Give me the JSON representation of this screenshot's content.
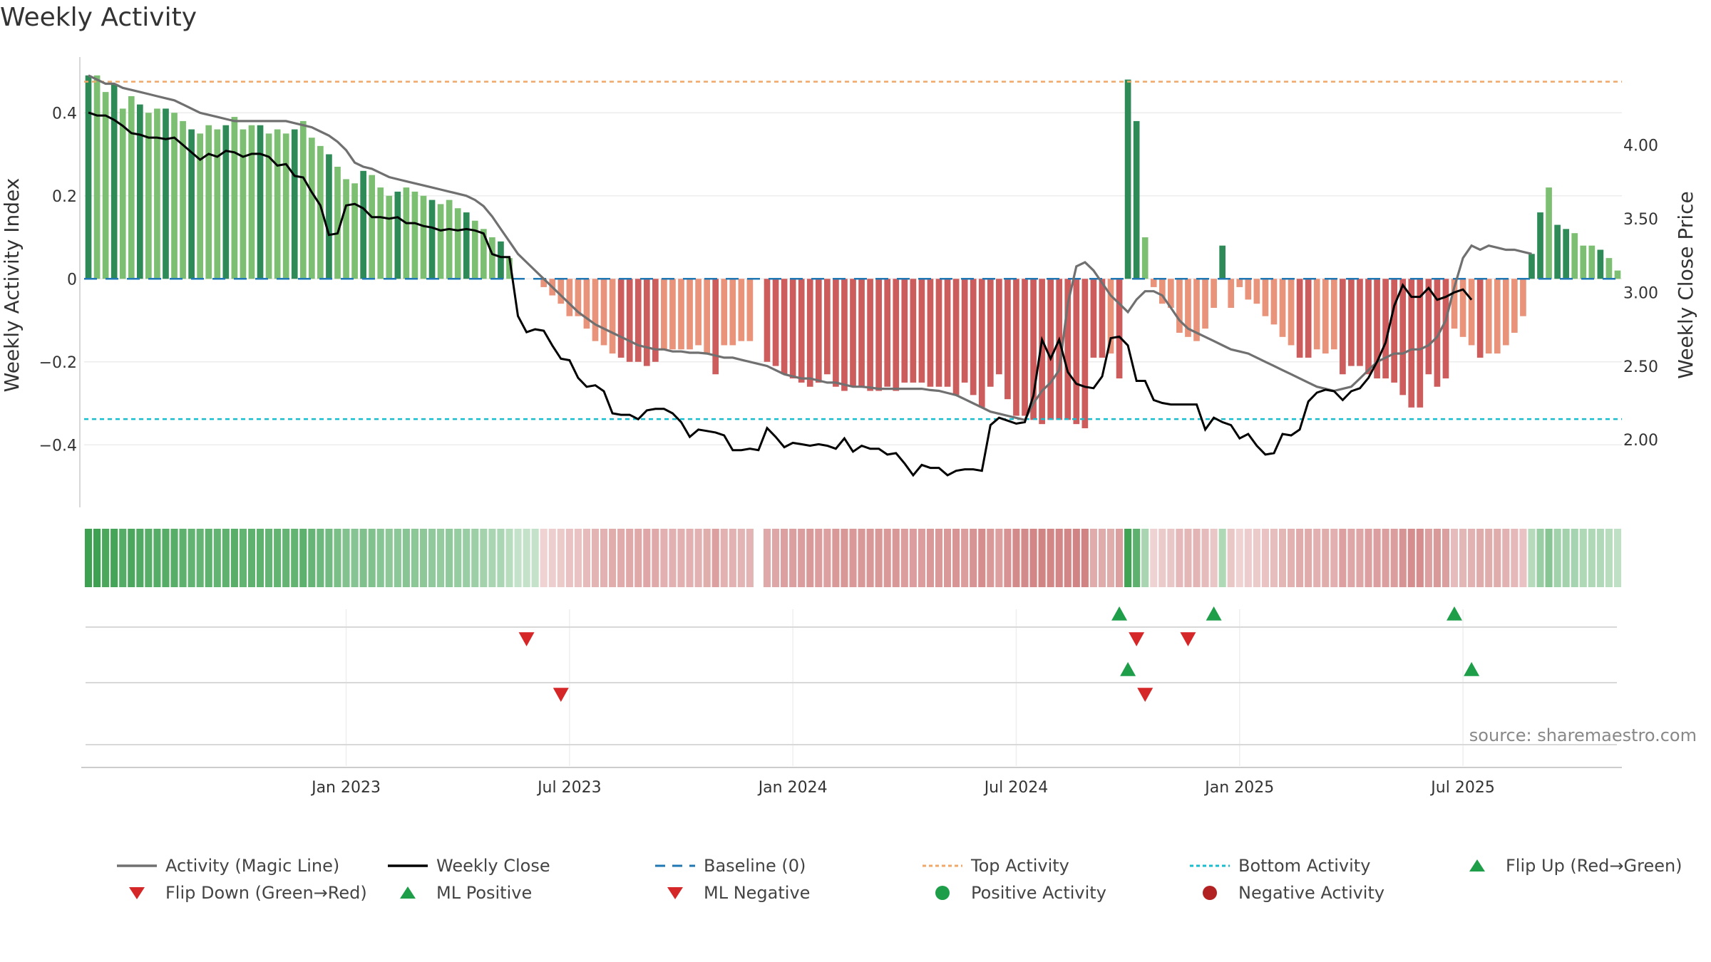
{
  "title": "Weekly Activity",
  "source": "source: sharemaestro.com",
  "colors": {
    "strong_green": "#2e8b57",
    "light_green": "#7cbf72",
    "strong_red": "#cd5c5c",
    "light_red": "#e8937a",
    "magic_line": "#707070",
    "close_line": "#000000",
    "baseline": "#1f77b4",
    "top": "#f0a868",
    "bottom": "#17becf",
    "flip_up": "#1f9e4a",
    "flip_down": "#d62728"
  },
  "chart_data": {
    "type": "bar",
    "title": "Weekly Activity",
    "ylabel_left": "Weekly Activity Index",
    "ylabel_right": "Weekly Close Price",
    "ylim_left": [
      -0.53,
      0.5
    ],
    "ylim_right": [
      1.6,
      4.5
    ],
    "yticks_left": [
      {
        "v": 0.4,
        "label": "0.4"
      },
      {
        "v": 0.2,
        "label": "0.2"
      },
      {
        "v": 0,
        "label": "0"
      },
      {
        "v": -0.2,
        "label": "−0.2"
      },
      {
        "v": -0.4,
        "label": "−0.4"
      }
    ],
    "yticks_right": [
      {
        "v": 4.0,
        "label": "4.00"
      },
      {
        "v": 3.5,
        "label": "3.50"
      },
      {
        "v": 3.0,
        "label": "3.00"
      },
      {
        "v": 2.5,
        "label": "2.50"
      },
      {
        "v": 2.0,
        "label": "2.00"
      }
    ],
    "xticks": [
      {
        "week": 30,
        "label": "Jan 2023"
      },
      {
        "week": 56,
        "label": "Jul 2023"
      },
      {
        "week": 82,
        "label": "Jan 2024"
      },
      {
        "week": 108,
        "label": "Jul 2024"
      },
      {
        "week": 134,
        "label": "Jan 2025"
      },
      {
        "week": 160,
        "label": "Jul 2025"
      }
    ],
    "first_week": "2022-06-06",
    "top_activity": 0.475,
    "bottom_activity": -0.338,
    "activity": [
      0.49,
      0.49,
      0.45,
      0.47,
      0.41,
      0.44,
      0.42,
      0.4,
      0.41,
      0.41,
      0.4,
      0.38,
      0.36,
      0.35,
      0.37,
      0.36,
      0.37,
      0.39,
      0.36,
      0.37,
      0.37,
      0.35,
      0.36,
      0.35,
      0.36,
      0.38,
      0.34,
      0.32,
      0.3,
      0.27,
      0.24,
      0.23,
      0.26,
      0.25,
      0.22,
      0.2,
      0.21,
      0.22,
      0.21,
      0.2,
      0.19,
      0.18,
      0.19,
      0.17,
      0.16,
      0.14,
      0.12,
      0.1,
      0.09,
      0.05,
      0.0,
      0.0,
      0.0,
      -0.02,
      -0.04,
      -0.06,
      -0.09,
      -0.09,
      -0.12,
      -0.15,
      -0.16,
      -0.18,
      -0.19,
      -0.2,
      -0.2,
      -0.21,
      -0.2,
      -0.17,
      -0.17,
      -0.17,
      -0.17,
      -0.16,
      -0.18,
      -0.23,
      -0.16,
      -0.16,
      -0.15,
      -0.15,
      null,
      -0.2,
      -0.21,
      -0.23,
      -0.24,
      -0.25,
      -0.26,
      -0.25,
      -0.23,
      -0.26,
      -0.27,
      -0.26,
      -0.26,
      -0.27,
      -0.27,
      -0.26,
      -0.27,
      -0.25,
      -0.25,
      -0.25,
      -0.26,
      -0.26,
      -0.26,
      -0.28,
      -0.25,
      -0.28,
      -0.31,
      -0.26,
      -0.23,
      -0.29,
      -0.33,
      -0.33,
      -0.34,
      -0.35,
      -0.34,
      -0.34,
      -0.34,
      -0.35,
      -0.36,
      -0.19,
      -0.19,
      -0.18,
      -0.24,
      0.48,
      0.38,
      0.1,
      -0.02,
      -0.06,
      -0.07,
      -0.13,
      -0.14,
      -0.15,
      -0.12,
      -0.07,
      0.08,
      -0.07,
      -0.02,
      -0.05,
      -0.06,
      -0.09,
      -0.11,
      -0.14,
      -0.16,
      -0.19,
      -0.19,
      -0.17,
      -0.18,
      -0.17,
      -0.23,
      -0.21,
      -0.21,
      -0.23,
      -0.24,
      -0.24,
      -0.25,
      -0.28,
      -0.31,
      -0.31,
      -0.23,
      -0.26,
      -0.24,
      -0.12,
      -0.14,
      -0.16,
      -0.19,
      -0.18,
      -0.18,
      -0.16,
      -0.13,
      -0.09,
      0.06,
      0.16,
      0.22,
      0.13,
      0.12,
      0.11,
      0.08,
      0.08,
      0.07,
      0.05,
      0.02
    ],
    "magic_line": [
      0.49,
      0.48,
      0.47,
      0.47,
      0.46,
      0.455,
      0.45,
      0.445,
      0.44,
      0.435,
      0.43,
      0.42,
      0.41,
      0.4,
      0.395,
      0.39,
      0.385,
      0.38,
      0.38,
      0.38,
      0.38,
      0.38,
      0.38,
      0.38,
      0.375,
      0.37,
      0.365,
      0.355,
      0.345,
      0.33,
      0.31,
      0.28,
      0.27,
      0.265,
      0.255,
      0.245,
      0.24,
      0.235,
      0.23,
      0.225,
      0.22,
      0.215,
      0.21,
      0.205,
      0.2,
      0.19,
      0.175,
      0.15,
      0.12,
      0.09,
      0.06,
      0.04,
      0.02,
      0.0,
      -0.02,
      -0.04,
      -0.06,
      -0.08,
      -0.095,
      -0.11,
      -0.12,
      -0.13,
      -0.14,
      -0.15,
      -0.16,
      -0.165,
      -0.17,
      -0.17,
      -0.175,
      -0.175,
      -0.178,
      -0.178,
      -0.18,
      -0.185,
      -0.19,
      -0.19,
      -0.195,
      -0.2,
      -0.205,
      -0.21,
      -0.22,
      -0.23,
      -0.235,
      -0.24,
      -0.24,
      -0.245,
      -0.25,
      -0.25,
      -0.255,
      -0.26,
      -0.26,
      -0.262,
      -0.265,
      -0.265,
      -0.265,
      -0.265,
      -0.265,
      -0.265,
      -0.268,
      -0.27,
      -0.275,
      -0.28,
      -0.29,
      -0.3,
      -0.31,
      -0.32,
      -0.325,
      -0.33,
      -0.335,
      -0.34,
      -0.3,
      -0.27,
      -0.25,
      -0.22,
      -0.06,
      0.03,
      0.04,
      0.02,
      -0.01,
      -0.04,
      -0.06,
      -0.08,
      -0.05,
      -0.03,
      -0.03,
      -0.04,
      -0.07,
      -0.1,
      -0.12,
      -0.13,
      -0.14,
      -0.15,
      -0.16,
      -0.17,
      -0.175,
      -0.18,
      -0.19,
      -0.2,
      -0.21,
      -0.22,
      -0.23,
      -0.24,
      -0.25,
      -0.26,
      -0.265,
      -0.27,
      -0.265,
      -0.26,
      -0.24,
      -0.22,
      -0.2,
      -0.19,
      -0.18,
      -0.18,
      -0.17,
      -0.17,
      -0.16,
      -0.14,
      -0.1,
      -0.02,
      0.05,
      0.08,
      0.07,
      0.08,
      0.075,
      0.07,
      0.07,
      0.065,
      0.06
    ],
    "weekly_close": [
      4.22,
      4.2,
      4.2,
      4.17,
      4.13,
      4.08,
      4.07,
      4.05,
      4.05,
      4.04,
      4.05,
      4.0,
      3.95,
      3.9,
      3.94,
      3.92,
      3.96,
      3.95,
      3.92,
      3.94,
      3.94,
      3.92,
      3.86,
      3.87,
      3.79,
      3.78,
      3.68,
      3.59,
      3.39,
      3.4,
      3.59,
      3.6,
      3.57,
      3.51,
      3.51,
      3.5,
      3.51,
      3.47,
      3.47,
      3.45,
      3.44,
      3.42,
      3.43,
      3.42,
      3.43,
      3.42,
      3.4,
      3.26,
      3.24,
      3.24,
      2.84,
      2.73,
      2.75,
      2.74,
      2.64,
      2.55,
      2.54,
      2.42,
      2.36,
      2.37,
      2.33,
      2.18,
      2.17,
      2.17,
      2.14,
      2.2,
      2.21,
      2.21,
      2.18,
      2.12,
      2.02,
      2.07,
      2.06,
      2.05,
      2.03,
      1.93,
      1.93,
      1.94,
      1.93,
      2.08,
      2.02,
      1.95,
      1.98,
      1.97,
      1.96,
      1.97,
      1.96,
      1.94,
      2.01,
      1.92,
      1.96,
      1.94,
      1.94,
      1.9,
      1.91,
      1.84,
      1.76,
      1.83,
      1.81,
      1.81,
      1.76,
      1.79,
      1.8,
      1.8,
      1.79,
      2.1,
      2.15,
      2.13,
      2.11,
      2.12,
      2.3,
      2.68,
      2.55,
      2.68,
      2.46,
      2.38,
      2.36,
      2.35,
      2.43,
      2.69,
      2.7,
      2.64,
      2.4,
      2.4,
      2.27,
      2.25,
      2.24,
      2.24,
      2.24,
      2.24,
      2.07,
      2.15,
      2.12,
      2.1,
      2.01,
      2.04,
      1.96,
      1.9,
      1.91,
      2.04,
      2.03,
      2.07,
      2.26,
      2.32,
      2.34,
      2.33,
      2.27,
      2.33,
      2.35,
      2.42,
      2.53,
      2.66,
      2.91,
      3.05,
      2.97,
      2.97,
      3.03,
      2.95,
      2.97,
      3.0,
      3.02,
      2.95
    ]
  },
  "strip_days": [
    {
      "label": "",
      "ticks_up": [
        120,
        131,
        159
      ],
      "ticks_down": [
        51,
        122,
        128
      ]
    },
    {
      "label": "",
      "ticks_up": [
        121,
        161
      ],
      "ticks_down": [
        55,
        123
      ]
    }
  ],
  "legend": {
    "items": [
      {
        "label": "Activity (Magic Line)",
        "kind": "line",
        "color": "#707070"
      },
      {
        "label": "Weekly Close",
        "kind": "line",
        "color": "#000000"
      },
      {
        "label": "Baseline (0)",
        "kind": "dash",
        "color": "#1f77b4"
      },
      {
        "label": "Top Activity",
        "kind": "dot-line",
        "color": "#f0a868"
      },
      {
        "label": "Bottom Activity",
        "kind": "dot-line",
        "color": "#17becf"
      },
      {
        "label": "Flip Up (Red→Green)",
        "kind": "tri-up",
        "color": "#1f9e4a"
      },
      {
        "label": "Flip Down (Green→Red)",
        "kind": "tri-down",
        "color": "#d62728"
      },
      {
        "label": "ML Positive",
        "kind": "tri-up",
        "color": "#1f9e4a"
      },
      {
        "label": "ML Negative",
        "kind": "tri-down",
        "color": "#d62728"
      },
      {
        "label": "Positive Activity",
        "kind": "circle",
        "color": "#1f9e4a"
      },
      {
        "label": "Negative Activity",
        "kind": "circle",
        "color": "#b22222"
      }
    ]
  }
}
